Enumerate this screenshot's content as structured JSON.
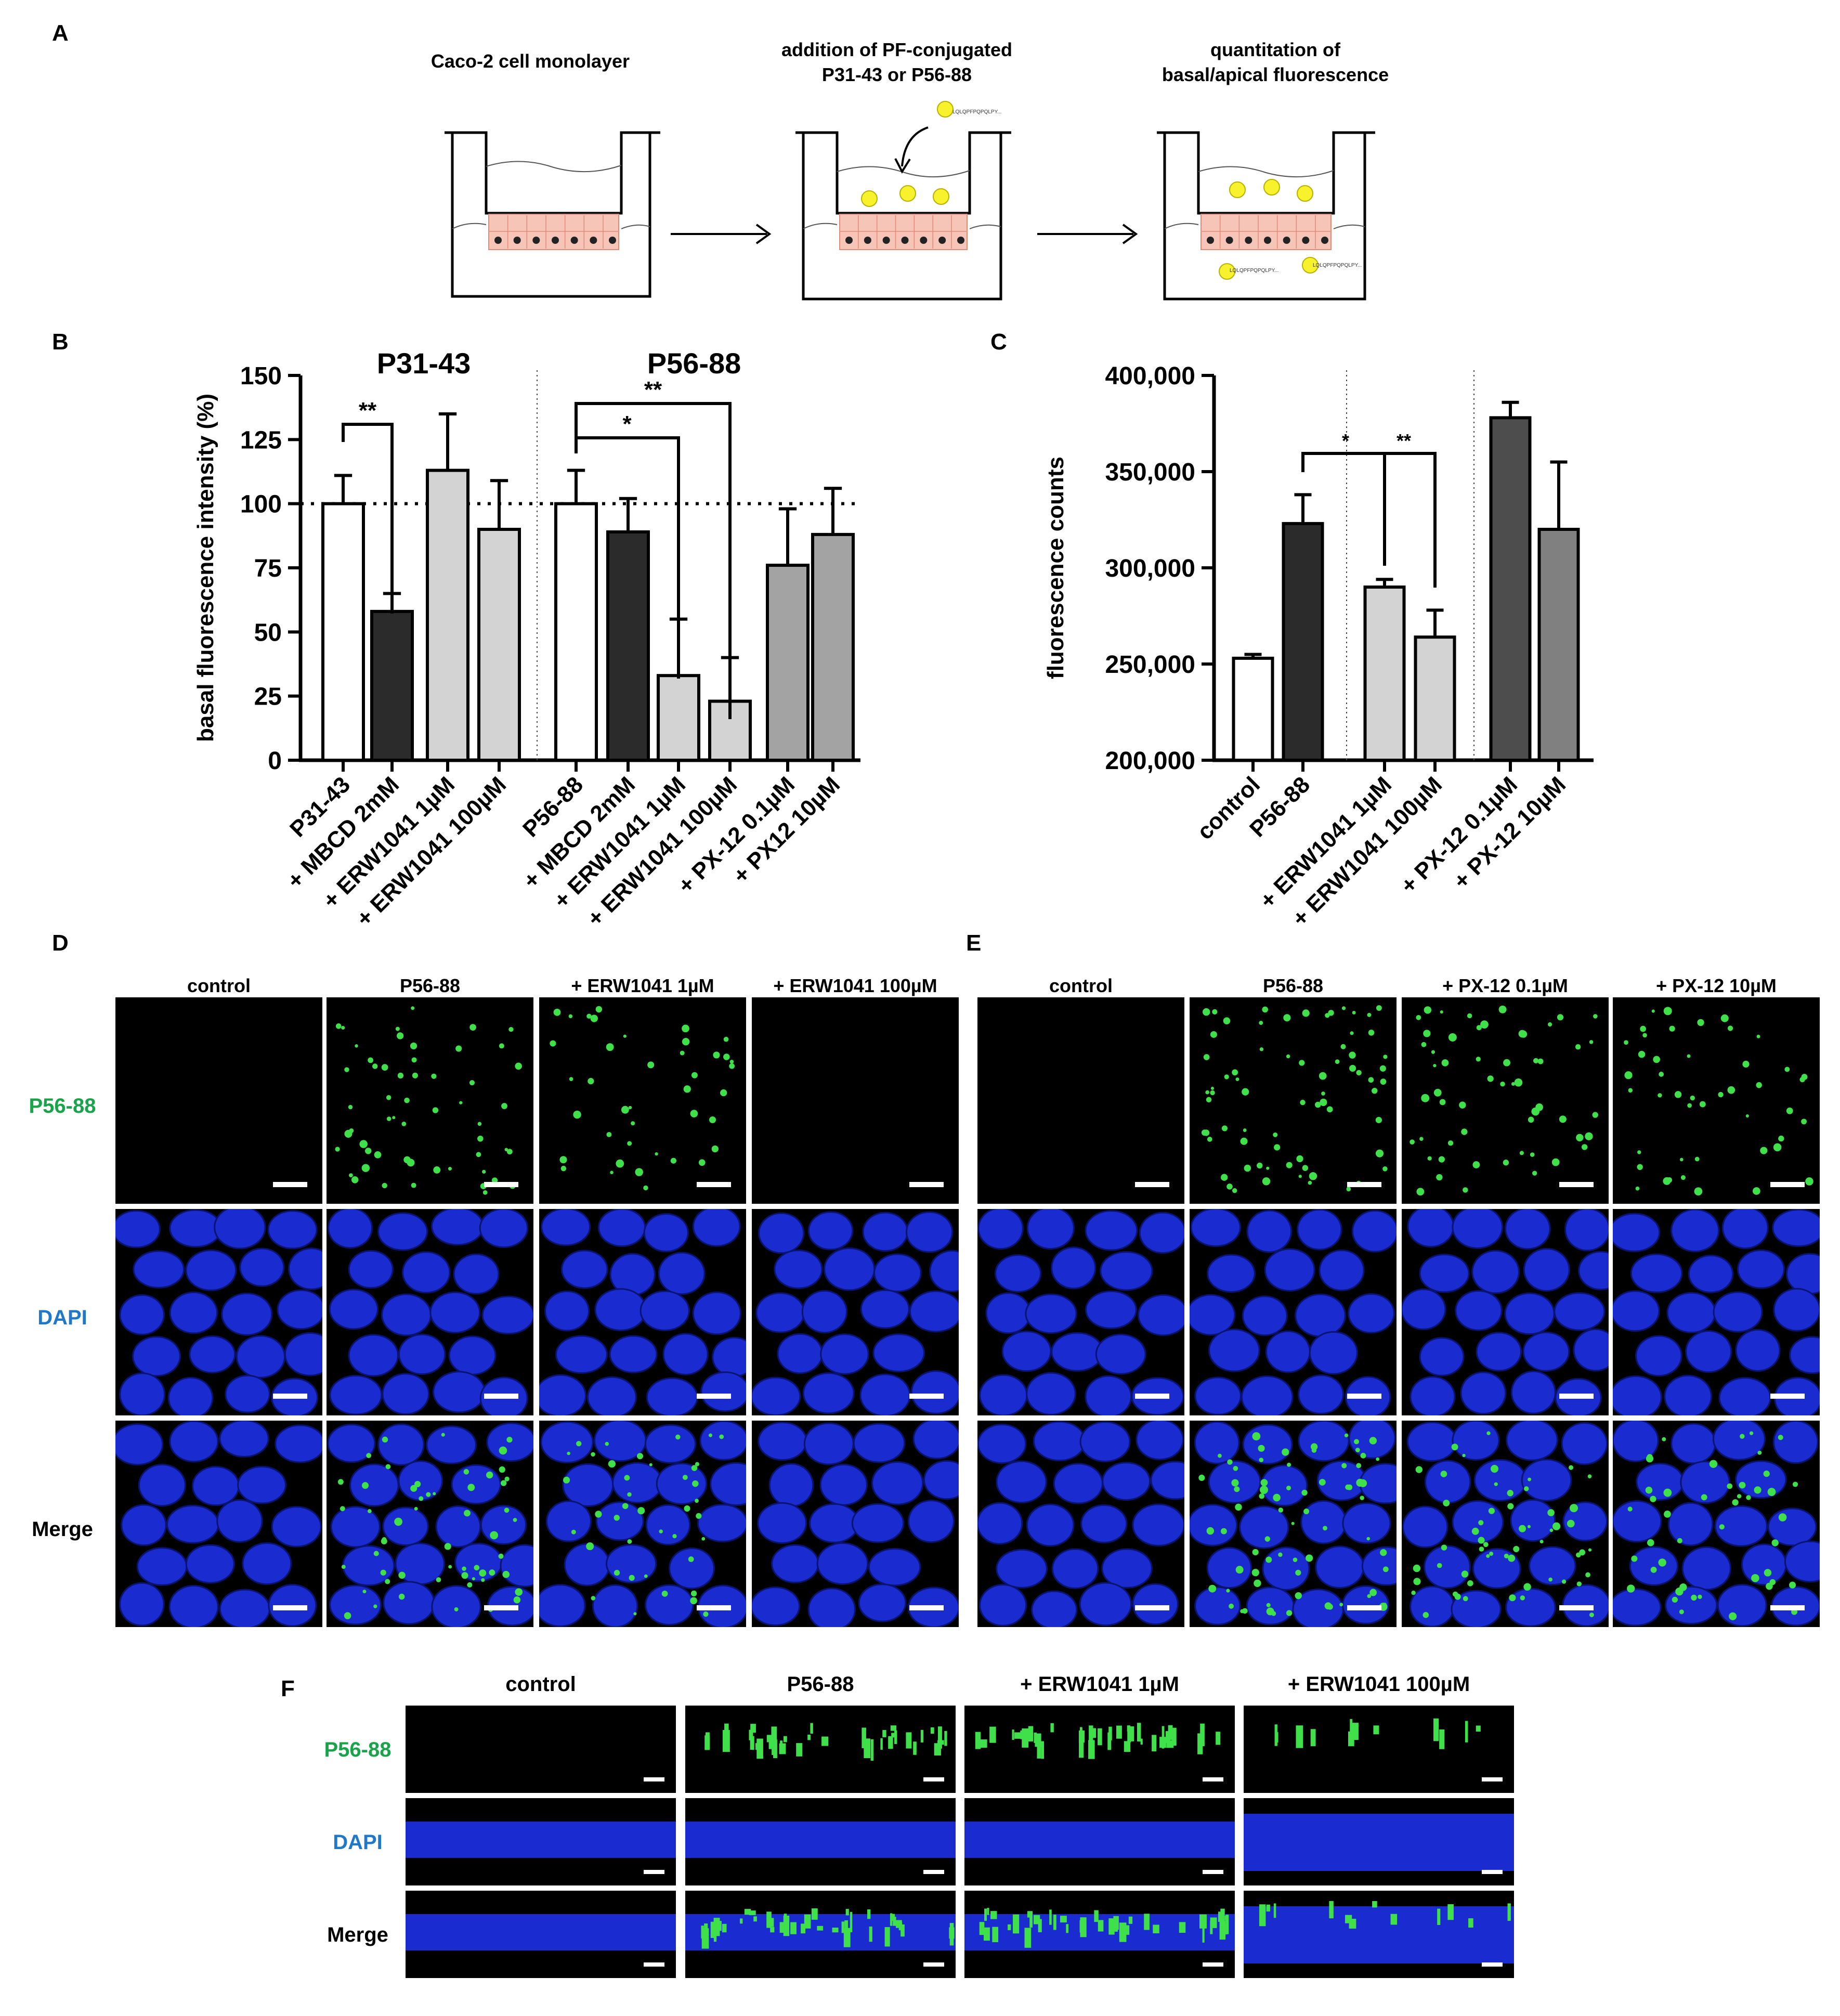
{
  "panel_labels": {
    "a": "A",
    "b": "B",
    "c": "C",
    "d": "D",
    "e": "E",
    "f": "F"
  },
  "panel_a": {
    "step1": "Caco-2 cell monolayer",
    "step2_line1": "addition of PF-conjugated",
    "step2_line2": "P31-43 or P56-88",
    "step3_line1": "quantitation of",
    "step3_line2": "basal/apical fluorescence",
    "peptide_tag": "LQLQPFPQPQLPY..."
  },
  "chart_data": [
    {
      "type": "bar",
      "id": "panel_b",
      "ylabel": "basal fluorescence intensity (%)",
      "ylim": [
        0,
        150
      ],
      "yticks": [
        "0",
        "25",
        "50",
        "75",
        "100",
        "125",
        "150"
      ],
      "groups": [
        "P31-43",
        "P56-88"
      ],
      "categories": [
        "P31-43",
        "+ MBCD 2mM",
        "+ ERW1041 1µM",
        "+ ERW1041 100µM",
        "P56-88",
        "+ MBCD 2mM",
        "+ ERW1041 1µM",
        "+ ERW1041 100µM",
        "+ PX-12 0.1µM",
        "+ PX12 10µM"
      ],
      "values": [
        100,
        58,
        113,
        90,
        100,
        89,
        33,
        23,
        76,
        88
      ],
      "errors": [
        11,
        7,
        22,
        19,
        13,
        13,
        22,
        17,
        22,
        18
      ],
      "colors": [
        "#ffffff",
        "#2b2b2b",
        "#d3d3d3",
        "#d3d3d3",
        "#ffffff",
        "#2b2b2b",
        "#d3d3d3",
        "#d3d3d3",
        "#a3a3a3",
        "#a3a3a3"
      ],
      "reference_line": 100,
      "significance": [
        {
          "label": "**",
          "from": 0,
          "to": 1
        },
        {
          "label": "*",
          "from": 4,
          "to": 6
        },
        {
          "label": "**",
          "from": 4,
          "to": 7
        }
      ]
    },
    {
      "type": "bar",
      "id": "panel_c",
      "ylabel": "fluorescence counts",
      "ylim": [
        200000,
        400000
      ],
      "yticks": [
        "200,000",
        "250,000",
        "300,000",
        "350,000",
        "400,000"
      ],
      "categories": [
        "control",
        "P56-88",
        "+ ERW1041 1µM",
        "+ ERW1041 100µM",
        "+ PX-12 0.1µM",
        "+ PX-12 10µM"
      ],
      "values": [
        253000,
        323000,
        290000,
        264000,
        378000,
        320000
      ],
      "errors": [
        2000,
        15000,
        4000,
        14000,
        8000,
        35000
      ],
      "colors": [
        "#ffffff",
        "#2b2b2b",
        "#d3d3d3",
        "#d3d3d3",
        "#4d4d4d",
        "#808080"
      ],
      "significance": [
        {
          "label": "*",
          "from": 1,
          "to": 2
        },
        {
          "label": "**",
          "from": 1,
          "to": 3
        }
      ]
    }
  ],
  "panel_d": {
    "columns": [
      "control",
      "P56-88",
      "+ ERW1041 1µM",
      "+ ERW1041 100µM"
    ]
  },
  "panel_e": {
    "columns": [
      "control",
      "P56-88",
      "+ PX-12 0.1µM",
      "+ PX-12 10µM"
    ]
  },
  "panel_f": {
    "columns": [
      "control",
      "P56-88",
      "+ ERW1041 1µM",
      "+ ERW1041 100µM"
    ]
  },
  "rows": {
    "green": "P56-88",
    "blue": "DAPI",
    "merge": "Merge"
  },
  "colors": {
    "green_label": "#1aa34a",
    "blue_label": "#1f78c8",
    "nucleus": "#1a2fd6",
    "spot": "#3fe04a"
  }
}
